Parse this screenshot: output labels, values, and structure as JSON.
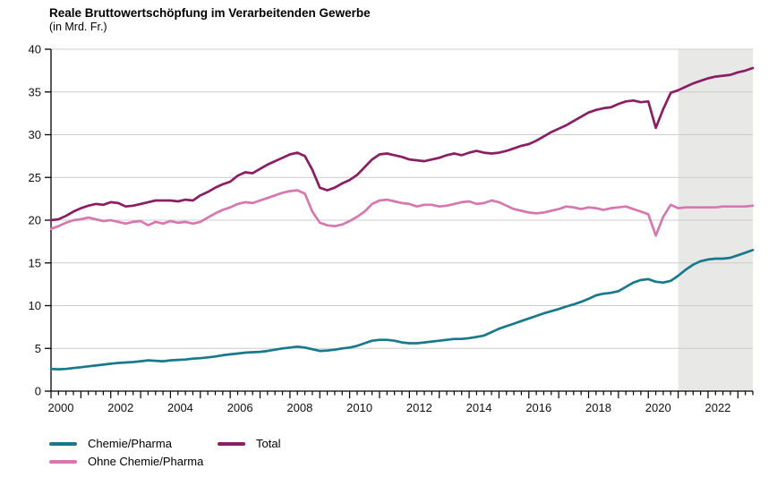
{
  "title": "Reale Bruttowertschöpfung im Verarbeitenden Gewerbe",
  "subtitle": "(in Mrd. Fr.)",
  "legend": [
    {
      "label": "Chemie/Pharma",
      "color": "#17798b"
    },
    {
      "label": "Ohne Chemie/Pharma",
      "color": "#d678af"
    },
    {
      "label": "Total",
      "color": "#8b1d64"
    }
  ],
  "chart_data": {
    "type": "line",
    "title": "Reale Bruttowertschöpfung im Verarbeitenden Gewerbe",
    "subtitle": "(in Mrd. Fr.)",
    "unit": "Mrd. Fr.",
    "frequency": "quarterly",
    "x_range": [
      2000,
      2023.5
    ],
    "x_step": 0.25,
    "y_axis": {
      "min": 0,
      "max": 40,
      "tick_step": 5,
      "ticks": [
        0,
        5,
        10,
        15,
        20,
        25,
        30,
        35,
        40
      ]
    },
    "x_axis": {
      "labels": [
        2000,
        2002,
        2004,
        2006,
        2008,
        2010,
        2012,
        2014,
        2016,
        2018,
        2020,
        2022
      ],
      "minor_ticks": "quarterly"
    },
    "grid": true,
    "legend_position": "bottom-left",
    "forecast_band": {
      "start": 2021,
      "end": 2023.5
    },
    "colors": {
      "grid": "#cccccc",
      "band": "#e8e8e6",
      "axis": "#000000"
    },
    "series": [
      {
        "name": "Chemie/Pharma",
        "color": "#17798b",
        "values": [
          2.6,
          2.55,
          2.6,
          2.7,
          2.8,
          2.9,
          3.0,
          3.1,
          3.2,
          3.3,
          3.35,
          3.4,
          3.5,
          3.6,
          3.55,
          3.5,
          3.6,
          3.65,
          3.7,
          3.8,
          3.85,
          3.95,
          4.05,
          4.2,
          4.3,
          4.4,
          4.5,
          4.55,
          4.6,
          4.7,
          4.85,
          5.0,
          5.1,
          5.2,
          5.1,
          4.9,
          4.7,
          4.75,
          4.85,
          5.0,
          5.1,
          5.3,
          5.6,
          5.9,
          6.0,
          6.0,
          5.9,
          5.7,
          5.6,
          5.6,
          5.7,
          5.8,
          5.9,
          6.0,
          6.1,
          6.1,
          6.2,
          6.35,
          6.5,
          6.9,
          7.3,
          7.6,
          7.9,
          8.2,
          8.5,
          8.8,
          9.1,
          9.35,
          9.6,
          9.9,
          10.15,
          10.45,
          10.8,
          11.2,
          11.4,
          11.5,
          11.7,
          12.2,
          12.7,
          13.0,
          13.1,
          12.8,
          12.7,
          12.9,
          13.5,
          14.2,
          14.8,
          15.2,
          15.4,
          15.5,
          15.5,
          15.6,
          15.9,
          16.2,
          16.5
        ]
      },
      {
        "name": "Ohne Chemie/Pharma",
        "color": "#d678af",
        "values": [
          19.0,
          19.3,
          19.7,
          20.0,
          20.1,
          20.3,
          20.1,
          19.9,
          20.0,
          19.8,
          19.6,
          19.8,
          19.9,
          19.4,
          19.8,
          19.6,
          19.9,
          19.7,
          19.8,
          19.6,
          19.8,
          20.3,
          20.8,
          21.2,
          21.5,
          21.9,
          22.1,
          22.0,
          22.3,
          22.6,
          22.9,
          23.2,
          23.4,
          23.5,
          23.1,
          21.0,
          19.7,
          19.4,
          19.3,
          19.5,
          19.9,
          20.4,
          21.0,
          21.9,
          22.3,
          22.4,
          22.2,
          22.0,
          21.9,
          21.6,
          21.8,
          21.8,
          21.6,
          21.7,
          21.9,
          22.1,
          22.2,
          21.9,
          22.0,
          22.3,
          22.1,
          21.7,
          21.3,
          21.1,
          20.9,
          20.8,
          20.9,
          21.1,
          21.3,
          21.6,
          21.5,
          21.3,
          21.5,
          21.4,
          21.2,
          21.4,
          21.5,
          21.6,
          21.3,
          21.0,
          20.7,
          18.2,
          20.4,
          21.8,
          21.4,
          21.5,
          21.5,
          21.5,
          21.5,
          21.5,
          21.6,
          21.6,
          21.6,
          21.6,
          21.7
        ]
      },
      {
        "name": "Total",
        "color": "#8b1d64",
        "values": [
          20.0,
          20.1,
          20.5,
          21.0,
          21.4,
          21.7,
          21.9,
          21.8,
          22.1,
          22.0,
          21.6,
          21.7,
          21.9,
          22.1,
          22.3,
          22.3,
          22.3,
          22.2,
          22.4,
          22.3,
          22.9,
          23.3,
          23.8,
          24.2,
          24.5,
          25.2,
          25.6,
          25.5,
          26.0,
          26.5,
          26.9,
          27.3,
          27.7,
          27.9,
          27.5,
          25.9,
          23.8,
          23.5,
          23.8,
          24.3,
          24.7,
          25.3,
          26.2,
          27.1,
          27.7,
          27.8,
          27.6,
          27.4,
          27.1,
          27.0,
          26.9,
          27.1,
          27.3,
          27.6,
          27.8,
          27.6,
          27.9,
          28.1,
          27.9,
          27.8,
          27.9,
          28.1,
          28.4,
          28.7,
          28.9,
          29.3,
          29.8,
          30.3,
          30.7,
          31.1,
          31.6,
          32.1,
          32.6,
          32.9,
          33.1,
          33.2,
          33.6,
          33.9,
          34.0,
          33.8,
          33.9,
          30.8,
          33.0,
          34.9,
          35.2,
          35.6,
          36.0,
          36.3,
          36.6,
          36.8,
          36.9,
          37.0,
          37.3,
          37.5,
          37.8
        ]
      }
    ]
  }
}
